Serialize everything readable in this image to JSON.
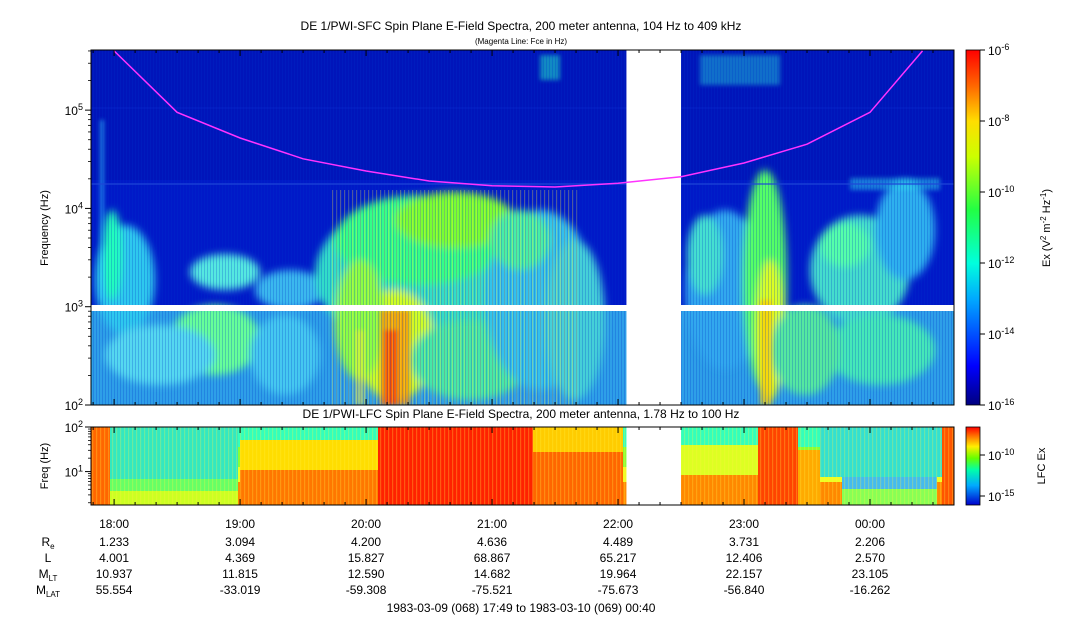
{
  "chart_data": [
    {
      "type": "heatmap",
      "title": "DE 1/PWI-SFC  Spin Plane E-Field Spectra, 200 meter antenna, 104 Hz to 409 kHz",
      "subtitle": "(Magenta Line: Fce in Hz)",
      "ylabel": "Frequency (Hz)",
      "yscale": "log",
      "ylim": [
        100,
        409000
      ],
      "y_ticks": [
        {
          "value": 100,
          "base": "10",
          "exp": "2"
        },
        {
          "value": 1000,
          "base": "10",
          "exp": "3"
        },
        {
          "value": 10000,
          "base": "10",
          "exp": "4"
        },
        {
          "value": 100000,
          "base": "10",
          "exp": "5"
        }
      ],
      "colorbar": {
        "label": "Ex (V² m⁻² Hz⁻¹)",
        "scale": "log",
        "range": [
          1e-16,
          1e-06
        ],
        "ticks": [
          {
            "value": 1e-06,
            "base": "10",
            "exp": "-6"
          },
          {
            "value": 1e-08,
            "base": "10",
            "exp": "-8"
          },
          {
            "value": 1e-10,
            "base": "10",
            "exp": "-10"
          },
          {
            "value": 1e-12,
            "base": "10",
            "exp": "-12"
          },
          {
            "value": 1e-14,
            "base": "10",
            "exp": "-14"
          },
          {
            "value": 1e-16,
            "base": "10",
            "exp": "-16"
          }
        ]
      },
      "data_gap": [
        "22:04",
        "22:30"
      ],
      "fce_line": {
        "name": "Fce",
        "color": "#ff33ff",
        "points": [
          {
            "t": "18:00",
            "f": 400000
          },
          {
            "t": "18:30",
            "f": 95000
          },
          {
            "t": "19:00",
            "f": 52000
          },
          {
            "t": "19:30",
            "f": 32000
          },
          {
            "t": "20:00",
            "f": 24000
          },
          {
            "t": "20:30",
            "f": 19000
          },
          {
            "t": "21:00",
            "f": 17000
          },
          {
            "t": "21:30",
            "f": 16500
          },
          {
            "t": "22:00",
            "f": 18000
          },
          {
            "t": "22:30",
            "f": 21000
          },
          {
            "t": "23:00",
            "f": 29000
          },
          {
            "t": "23:30",
            "f": 45000
          },
          {
            "t": "00:00",
            "f": 95000
          },
          {
            "t": "00:25",
            "f": 400000
          }
        ]
      }
    },
    {
      "type": "heatmap",
      "title": "DE 1/PWI-LFC  Spin Plane E-Field Spectra, 200 meter antenna, 1.78 Hz to 100 Hz",
      "ylabel": "Freq (Hz)",
      "yscale": "log",
      "ylim": [
        1.78,
        100
      ],
      "y_ticks": [
        {
          "value": 10,
          "base": "10",
          "exp": "1"
        },
        {
          "value": 100,
          "base": "10",
          "exp": "2"
        }
      ],
      "colorbar": {
        "label": "LFC Ex",
        "scale": "log",
        "ticks": [
          {
            "value": 1e-10,
            "base": "10",
            "exp": "-10"
          },
          {
            "value": 1e-15,
            "base": "10",
            "exp": "-15"
          }
        ]
      },
      "data_gap": [
        "22:04",
        "22:30"
      ]
    }
  ],
  "x_axis": {
    "tick_labels": [
      "18:00",
      "19:00",
      "20:00",
      "21:00",
      "22:00",
      "23:00",
      "00:00"
    ]
  },
  "ephemeris": [
    {
      "label": "R",
      "sub": "e",
      "values": [
        "1.233",
        "3.094",
        "4.200",
        "4.636",
        "4.489",
        "3.731",
        "2.206"
      ]
    },
    {
      "label": "L",
      "sub": "",
      "values": [
        "4.001",
        "4.369",
        "15.827",
        "68.867",
        "65.217",
        "12.406",
        "2.570"
      ]
    },
    {
      "label": "M",
      "sub": "LT",
      "values": [
        "10.937",
        "11.815",
        "12.590",
        "14.682",
        "19.964",
        "22.157",
        "23.105"
      ]
    },
    {
      "label": "M",
      "sub": "LAT",
      "values": [
        "55.554",
        "-33.019",
        "-59.308",
        "-75.521",
        "-75.673",
        "-56.840",
        "-16.262"
      ]
    }
  ],
  "time_range": "1983-03-09 (068) 17:49 to 1983-03-10 (069) 00:40"
}
